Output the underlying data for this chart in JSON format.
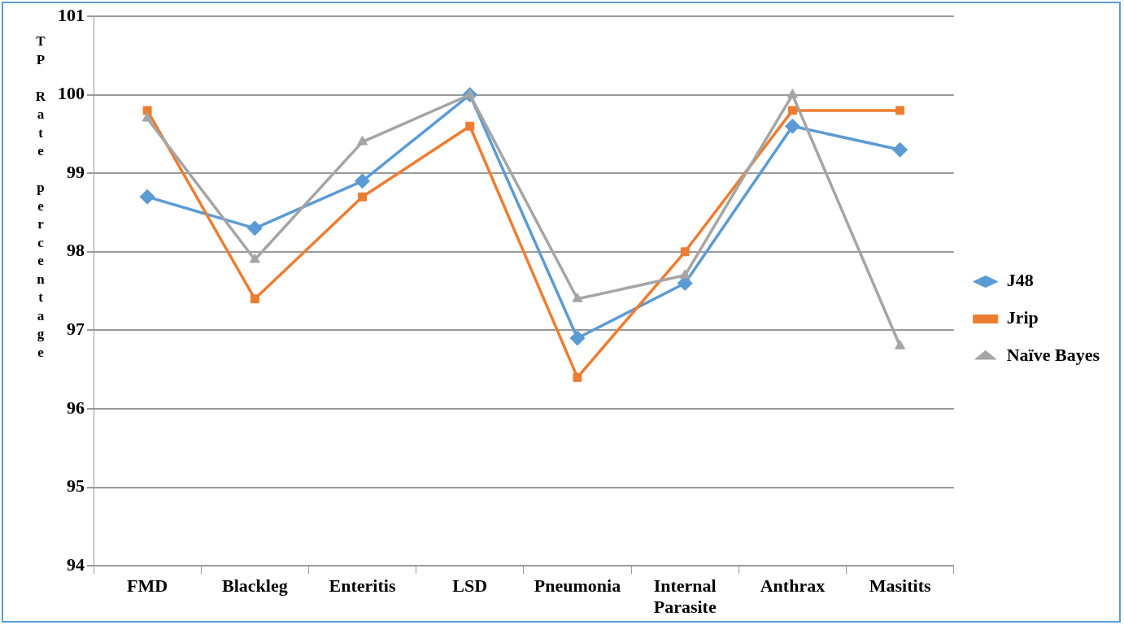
{
  "chart_data": {
    "type": "line",
    "ylabel": "TP Rate percentage",
    "categories": [
      "FMD",
      "Blackleg",
      "Enteritis",
      "LSD",
      "Pneumonia",
      "Internal Parasite",
      "Anthrax",
      "Masitits"
    ],
    "series": [
      {
        "name": "J48",
        "color": "#5b9bd5",
        "marker": "diamond",
        "values": [
          98.7,
          98.3,
          98.9,
          100,
          96.9,
          97.6,
          99.6,
          99.3
        ]
      },
      {
        "name": "Jrip",
        "color": "#ed7d31",
        "marker": "square",
        "values": [
          99.8,
          97.4,
          98.7,
          99.6,
          96.4,
          98.0,
          99.8,
          99.8
        ]
      },
      {
        "name": "Naïve Bayes",
        "color": "#a5a5a5",
        "marker": "triangle",
        "values": [
          99.7,
          97.9,
          99.4,
          100,
          97.4,
          97.7,
          100,
          96.8
        ]
      }
    ],
    "ylim": [
      94,
      101
    ],
    "yticks": [
      94,
      95,
      96,
      97,
      98,
      99,
      100,
      101
    ],
    "grid": "y",
    "legend": "right",
    "line_style": "solid"
  }
}
